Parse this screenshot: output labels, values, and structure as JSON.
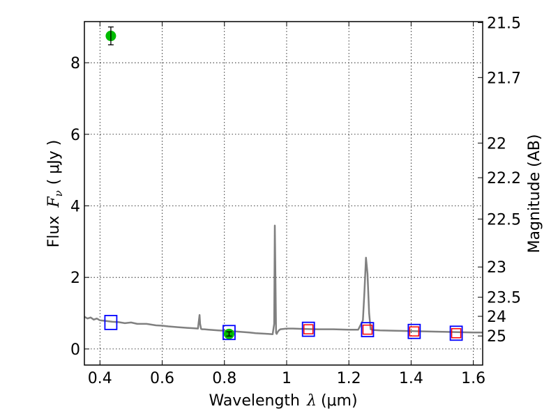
{
  "chart_data": {
    "type": "scatter",
    "title": "",
    "xlabel_prefix": "Wavelength",
    "xlabel_symbol": "λ",
    "xlabel_unit": "(μm)",
    "ylabel_prefix": "Flux",
    "ylabel_symbol": "F",
    "ylabel_subscript": "ν",
    "ylabel_unit": "( μJy )",
    "y2label": "Magnitude (AB)",
    "xlim": [
      0.35,
      1.63
    ],
    "ylim": [
      -0.45,
      9.15
    ],
    "x_ticks": [
      0.4,
      0.6,
      0.8,
      1.0,
      1.2,
      1.4,
      1.6
    ],
    "x_tick_labels": [
      "0.4",
      "0.6",
      "0.8",
      "1",
      "1.2",
      "1.4",
      "1.6"
    ],
    "y_ticks": [
      0,
      2,
      4,
      6,
      8
    ],
    "y_tick_labels": [
      "0",
      "2",
      "4",
      "6",
      "8"
    ],
    "y2_ticks": [
      {
        "mag": 21.5,
        "label": "21.5"
      },
      {
        "mag": 21.7,
        "label": "21.7"
      },
      {
        "mag": 22,
        "label": "22"
      },
      {
        "mag": 22.2,
        "label": "22.2"
      },
      {
        "mag": 22.5,
        "label": "22.5"
      },
      {
        "mag": 23,
        "label": "23"
      },
      {
        "mag": 23.5,
        "label": "23.5"
      },
      {
        "mag": 24,
        "label": "24"
      },
      {
        "mag": 25,
        "label": "25"
      }
    ],
    "grid": true,
    "colors": {
      "spectrum": "#808080",
      "observed": "#00bb00",
      "model_box": "#0000ff",
      "model_inner": "#ff0000"
    },
    "series": [
      {
        "kind": "spectrum",
        "x": [
          0.35,
          0.36,
          0.37,
          0.38,
          0.39,
          0.4,
          0.42,
          0.44,
          0.46,
          0.48,
          0.5,
          0.52,
          0.55,
          0.58,
          0.6,
          0.62,
          0.65,
          0.68,
          0.7,
          0.715,
          0.72,
          0.722,
          0.725,
          0.728,
          0.735,
          0.75,
          0.78,
          0.8,
          0.82,
          0.85,
          0.88,
          0.9,
          0.92,
          0.94,
          0.955,
          0.96,
          0.962,
          0.964,
          0.966,
          0.968,
          0.97,
          0.975,
          0.98,
          1.0,
          1.02,
          1.05,
          1.1,
          1.15,
          1.2,
          1.23,
          1.245,
          1.25,
          1.255,
          1.26,
          1.265,
          1.27,
          1.28,
          1.3,
          1.35,
          1.4,
          1.45,
          1.5,
          1.55,
          1.6,
          1.63
        ],
        "y": [
          0.9,
          0.85,
          0.88,
          0.82,
          0.85,
          0.8,
          0.78,
          0.76,
          0.75,
          0.72,
          0.74,
          0.7,
          0.7,
          0.66,
          0.65,
          0.63,
          0.61,
          0.59,
          0.58,
          0.57,
          0.95,
          0.7,
          0.56,
          0.55,
          0.55,
          0.54,
          0.52,
          0.51,
          0.5,
          0.48,
          0.46,
          0.44,
          0.43,
          0.42,
          0.41,
          0.7,
          3.45,
          2.0,
          0.45,
          0.42,
          0.46,
          0.52,
          0.55,
          0.57,
          0.57,
          0.56,
          0.55,
          0.55,
          0.54,
          0.54,
          0.8,
          1.6,
          2.55,
          2.1,
          1.0,
          0.55,
          0.53,
          0.52,
          0.51,
          0.5,
          0.49,
          0.48,
          0.47,
          0.46,
          0.46
        ]
      },
      {
        "kind": "observed",
        "x": [
          0.435,
          0.815
        ],
        "y": [
          8.75,
          0.42
        ],
        "yerr": [
          0.25,
          0.06
        ]
      },
      {
        "kind": "model",
        "x": [
          0.435,
          0.815,
          1.07,
          1.26,
          1.41,
          1.545
        ],
        "y": [
          0.74,
          0.46,
          0.55,
          0.54,
          0.49,
          0.44
        ],
        "inner": [
          false,
          false,
          true,
          true,
          true,
          true
        ]
      }
    ]
  }
}
